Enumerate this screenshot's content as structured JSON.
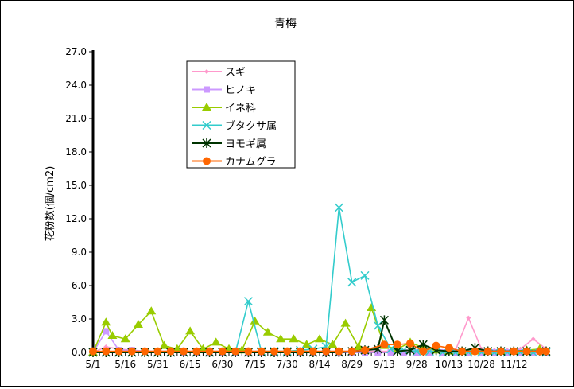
{
  "chart_data": {
    "type": "line",
    "title": "青梅",
    "xlabel": "",
    "ylabel": "花粉数(個/cm2)",
    "ylim": [
      0,
      27
    ],
    "yticks": [
      "0.0",
      "3.0",
      "6.0",
      "9.0",
      "12.0",
      "15.0",
      "18.0",
      "21.0",
      "24.0",
      "27.0"
    ],
    "grid": false,
    "legend_position": "top-left (inside plot)",
    "x_tick_labels": [
      "5/1",
      "5/16",
      "5/31",
      "6/15",
      "6/30",
      "7/15",
      "7/30",
      "8/14",
      "8/29",
      "9/13",
      "9/28",
      "10/13",
      "10/28",
      "11/12"
    ],
    "x": [
      "5/1",
      "5/4",
      "5/7",
      "5/10",
      "5/13",
      "5/16",
      "5/19",
      "5/22",
      "5/25",
      "5/28",
      "5/31",
      "6/3",
      "6/6",
      "6/9",
      "6/12",
      "6/15",
      "6/18",
      "6/21",
      "6/24",
      "6/27",
      "6/30",
      "7/3",
      "7/6",
      "7/9",
      "7/12",
      "7/15",
      "7/18",
      "7/21",
      "7/24",
      "7/27",
      "7/30",
      "8/2",
      "8/5",
      "8/8",
      "8/11",
      "8/14",
      "8/17",
      "8/20",
      "8/23",
      "8/26",
      "8/29",
      "9/1",
      "9/4",
      "9/7",
      "9/10",
      "9/13",
      "9/16",
      "9/19",
      "9/22",
      "9/25",
      "9/28",
      "10/1",
      "10/4",
      "10/7",
      "10/10",
      "10/13",
      "10/16",
      "10/19",
      "10/22",
      "10/25",
      "10/28",
      "10/31",
      "11/3",
      "11/6",
      "11/9",
      "11/12",
      "11/15",
      "11/18",
      "11/21",
      "11/24",
      "11/27"
    ],
    "series": [
      {
        "name": "スギ",
        "color": "#ff99cc",
        "marker": "diamond",
        "points": [
          [
            "5/1",
            0
          ],
          [
            "5/7",
            0.5
          ],
          [
            "5/13",
            0.3
          ],
          [
            "5/19",
            0.2
          ],
          [
            "5/25",
            0.1
          ],
          [
            "5/31",
            0.1
          ],
          [
            "6/6",
            0.1
          ],
          [
            "6/12",
            0.1
          ],
          [
            "6/18",
            0.1
          ],
          [
            "6/24",
            0.1
          ],
          [
            "6/30",
            0.1
          ],
          [
            "7/6",
            0.1
          ],
          [
            "7/12",
            0.1
          ],
          [
            "7/18",
            0.1
          ],
          [
            "7/24",
            0.1
          ],
          [
            "7/30",
            0.1
          ],
          [
            "8/5",
            0.1
          ],
          [
            "8/11",
            0.1
          ],
          [
            "8/17",
            0.1
          ],
          [
            "8/23",
            0.1
          ],
          [
            "8/29",
            0.1
          ],
          [
            "9/4",
            0.1
          ],
          [
            "9/10",
            0.1
          ],
          [
            "9/16",
            0.1
          ],
          [
            "9/22",
            0.1
          ],
          [
            "9/28",
            0.1
          ],
          [
            "10/4",
            0.1
          ],
          [
            "10/10",
            0.1
          ],
          [
            "10/16",
            0.2
          ],
          [
            "10/22",
            3.1
          ],
          [
            "10/28",
            0.3
          ],
          [
            "11/3",
            0.2
          ],
          [
            "11/9",
            0.2
          ],
          [
            "11/15",
            0.3
          ],
          [
            "11/21",
            1.2
          ],
          [
            "11/27",
            0.3
          ]
        ]
      },
      {
        "name": "ヒノキ",
        "color": "#cc99ff",
        "marker": "square",
        "points": [
          [
            "5/1",
            0
          ],
          [
            "5/7",
            1.9
          ],
          [
            "5/13",
            0.2
          ],
          [
            "5/19",
            0.2
          ],
          [
            "5/25",
            0.1
          ],
          [
            "5/31",
            0.1
          ],
          [
            "6/6",
            0.1
          ],
          [
            "6/12",
            0
          ],
          [
            "6/18",
            0
          ],
          [
            "6/24",
            0
          ],
          [
            "6/30",
            0
          ],
          [
            "7/6",
            0
          ],
          [
            "7/12",
            0
          ],
          [
            "7/18",
            0
          ],
          [
            "7/24",
            0
          ],
          [
            "7/30",
            0
          ],
          [
            "8/5",
            0
          ],
          [
            "8/11",
            0
          ],
          [
            "8/17",
            0
          ],
          [
            "8/23",
            0
          ],
          [
            "8/29",
            0
          ],
          [
            "9/4",
            0
          ],
          [
            "9/10",
            0
          ],
          [
            "9/16",
            0
          ],
          [
            "9/22",
            0
          ],
          [
            "9/28",
            0
          ],
          [
            "10/4",
            0
          ],
          [
            "10/10",
            0
          ],
          [
            "10/16",
            0
          ],
          [
            "10/22",
            0
          ],
          [
            "10/28",
            0
          ],
          [
            "11/3",
            0
          ],
          [
            "11/9",
            0
          ],
          [
            "11/15",
            0
          ],
          [
            "11/21",
            0
          ],
          [
            "11/27",
            0
          ]
        ]
      },
      {
        "name": "イネ科",
        "color": "#99cc00",
        "marker": "triangle",
        "points": [
          [
            "5/1",
            0
          ],
          [
            "5/7",
            2.7
          ],
          [
            "5/10",
            1.5
          ],
          [
            "5/16",
            1.2
          ],
          [
            "5/22",
            2.5
          ],
          [
            "5/28",
            3.7
          ],
          [
            "6/3",
            0.6
          ],
          [
            "6/9",
            0.3
          ],
          [
            "6/15",
            1.9
          ],
          [
            "6/21",
            0.3
          ],
          [
            "6/27",
            0.9
          ],
          [
            "7/3",
            0.3
          ],
          [
            "7/9",
            0.2
          ],
          [
            "7/15",
            2.8
          ],
          [
            "7/21",
            1.8
          ],
          [
            "7/27",
            1.2
          ],
          [
            "8/2",
            1.2
          ],
          [
            "8/8",
            0.7
          ],
          [
            "8/14",
            1.2
          ],
          [
            "8/20",
            0.7
          ],
          [
            "8/26",
            2.6
          ],
          [
            "9/1",
            0.5
          ],
          [
            "9/7",
            4.0
          ],
          [
            "9/13",
            0.6
          ],
          [
            "9/19",
            0.3
          ],
          [
            "9/25",
            0.9
          ],
          [
            "10/1",
            0.4
          ],
          [
            "10/7",
            0.2
          ],
          [
            "10/13",
            0.1
          ],
          [
            "10/19",
            0.1
          ],
          [
            "10/25",
            0.1
          ],
          [
            "10/31",
            0.1
          ],
          [
            "11/6",
            0.1
          ],
          [
            "11/12",
            0.1
          ],
          [
            "11/18",
            0.2
          ],
          [
            "11/24",
            0.3
          ]
        ]
      },
      {
        "name": "ブタクサ属",
        "color": "#33cccc",
        "marker": "x",
        "points": [
          [
            "5/1",
            0
          ],
          [
            "5/7",
            0
          ],
          [
            "5/13",
            0
          ],
          [
            "5/19",
            0
          ],
          [
            "5/25",
            0
          ],
          [
            "5/31",
            0
          ],
          [
            "6/6",
            0
          ],
          [
            "6/12",
            0
          ],
          [
            "6/18",
            0
          ],
          [
            "6/24",
            0
          ],
          [
            "6/30",
            0
          ],
          [
            "7/6",
            0
          ],
          [
            "7/12",
            4.6
          ],
          [
            "7/18",
            0.1
          ],
          [
            "7/24",
            0.1
          ],
          [
            "7/30",
            0.1
          ],
          [
            "8/5",
            0.2
          ],
          [
            "8/11",
            0.3
          ],
          [
            "8/17",
            0.5
          ],
          [
            "8/23",
            13.0
          ],
          [
            "8/29",
            6.3
          ],
          [
            "9/4",
            6.9
          ],
          [
            "9/10",
            2.4
          ],
          [
            "9/16",
            0.3
          ],
          [
            "9/22",
            0.2
          ],
          [
            "9/28",
            0.1
          ],
          [
            "10/4",
            0.1
          ],
          [
            "10/10",
            0
          ],
          [
            "10/16",
            0
          ],
          [
            "10/22",
            0
          ],
          [
            "10/28",
            0
          ],
          [
            "11/3",
            0
          ],
          [
            "11/9",
            0
          ],
          [
            "11/15",
            0
          ],
          [
            "11/21",
            0
          ],
          [
            "11/27",
            0
          ]
        ]
      },
      {
        "name": "ヨモギ属",
        "color": "#003300",
        "marker": "asterisk",
        "points": [
          [
            "5/1",
            0
          ],
          [
            "5/7",
            0
          ],
          [
            "5/13",
            0
          ],
          [
            "5/19",
            0
          ],
          [
            "5/25",
            0
          ],
          [
            "5/31",
            0
          ],
          [
            "6/6",
            0
          ],
          [
            "6/12",
            0
          ],
          [
            "6/18",
            0
          ],
          [
            "6/24",
            0
          ],
          [
            "6/30",
            0
          ],
          [
            "7/6",
            0
          ],
          [
            "7/12",
            0
          ],
          [
            "7/18",
            0
          ],
          [
            "7/24",
            0
          ],
          [
            "7/30",
            0
          ],
          [
            "8/5",
            0
          ],
          [
            "8/11",
            0
          ],
          [
            "8/17",
            0
          ],
          [
            "8/23",
            0
          ],
          [
            "8/29",
            0.1
          ],
          [
            "9/4",
            0.2
          ],
          [
            "9/10",
            0.3
          ],
          [
            "9/13",
            2.9
          ],
          [
            "9/19",
            0.1
          ],
          [
            "9/25",
            0.2
          ],
          [
            "10/1",
            0.7
          ],
          [
            "10/7",
            0.2
          ],
          [
            "10/13",
            0.1
          ],
          [
            "10/19",
            0.1
          ],
          [
            "10/25",
            0.4
          ],
          [
            "10/31",
            0.1
          ],
          [
            "11/6",
            0.1
          ],
          [
            "11/12",
            0.1
          ],
          [
            "11/18",
            0.1
          ],
          [
            "11/27",
            0.1
          ]
        ]
      },
      {
        "name": "カナムグラ",
        "color": "#ff6600",
        "marker": "circle",
        "points": [
          [
            "5/1",
            0.1
          ],
          [
            "5/7",
            0.1
          ],
          [
            "5/13",
            0.1
          ],
          [
            "5/19",
            0.1
          ],
          [
            "5/25",
            0.1
          ],
          [
            "5/31",
            0.1
          ],
          [
            "6/6",
            0.1
          ],
          [
            "6/12",
            0.1
          ],
          [
            "6/18",
            0.1
          ],
          [
            "6/24",
            0.1
          ],
          [
            "6/30",
            0.1
          ],
          [
            "7/6",
            0.1
          ],
          [
            "7/12",
            0.1
          ],
          [
            "7/18",
            0.1
          ],
          [
            "7/24",
            0.1
          ],
          [
            "7/30",
            0.1
          ],
          [
            "8/5",
            0.1
          ],
          [
            "8/11",
            0.1
          ],
          [
            "8/17",
            0.1
          ],
          [
            "8/23",
            0.1
          ],
          [
            "8/29",
            0.1
          ],
          [
            "9/4",
            0.2
          ],
          [
            "9/13",
            0.7
          ],
          [
            "9/19",
            0.7
          ],
          [
            "9/25",
            0.8
          ],
          [
            "10/1",
            0.1
          ],
          [
            "10/7",
            0.6
          ],
          [
            "10/13",
            0.4
          ],
          [
            "10/19",
            0.1
          ],
          [
            "10/25",
            0.1
          ],
          [
            "10/31",
            0.1
          ],
          [
            "11/6",
            0.1
          ],
          [
            "11/12",
            0.1
          ],
          [
            "11/18",
            0.1
          ],
          [
            "11/24",
            0.1
          ],
          [
            "11/27",
            0.1
          ]
        ]
      }
    ]
  }
}
